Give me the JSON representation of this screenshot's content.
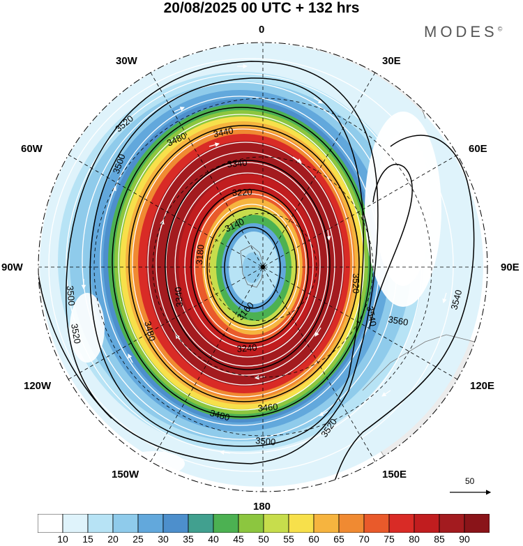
{
  "header": {
    "title": "20/08/2025  00 UTC  + 132 hrs",
    "brand": "MODES",
    "brand_mark": "©"
  },
  "map": {
    "projection": "south-polar-stereographic",
    "longitude_labels": {
      "top": "0",
      "top_right": "30E",
      "right_upper": "60E",
      "right": "90E",
      "right_lower": "120E",
      "bottom_right": "150E",
      "bottom": "180",
      "bottom_left": "150W",
      "left_lower": "120W",
      "left": "90W",
      "left_upper": "60W",
      "top_left": "30W"
    },
    "contour_labels": [
      "3520",
      "3480",
      "3440",
      "3500",
      "3340",
      "3220",
      "3140",
      "3180",
      "3160",
      "3240",
      "3340",
      "3460",
      "3500",
      "3520",
      "3540",
      "3560",
      "3540",
      "3520",
      "3480",
      "3500",
      "3480",
      "3520"
    ],
    "vector_reference": "50"
  },
  "colorbar": {
    "labels": [
      "10",
      "15",
      "20",
      "25",
      "30",
      "35",
      "40",
      "45",
      "50",
      "55",
      "60",
      "65",
      "70",
      "75",
      "80",
      "85",
      "90"
    ],
    "colors": [
      "#ffffff",
      "#dff3fb",
      "#b7e3f5",
      "#8fcbeb",
      "#62a8dc",
      "#4d8fcc",
      "#41a08f",
      "#4cb152",
      "#8cc63f",
      "#c7dd4c",
      "#f7e04b",
      "#f6b43f",
      "#f08a32",
      "#e95a2b",
      "#d92b26",
      "#c11d1f",
      "#a31b1f",
      "#8a1419"
    ]
  }
}
